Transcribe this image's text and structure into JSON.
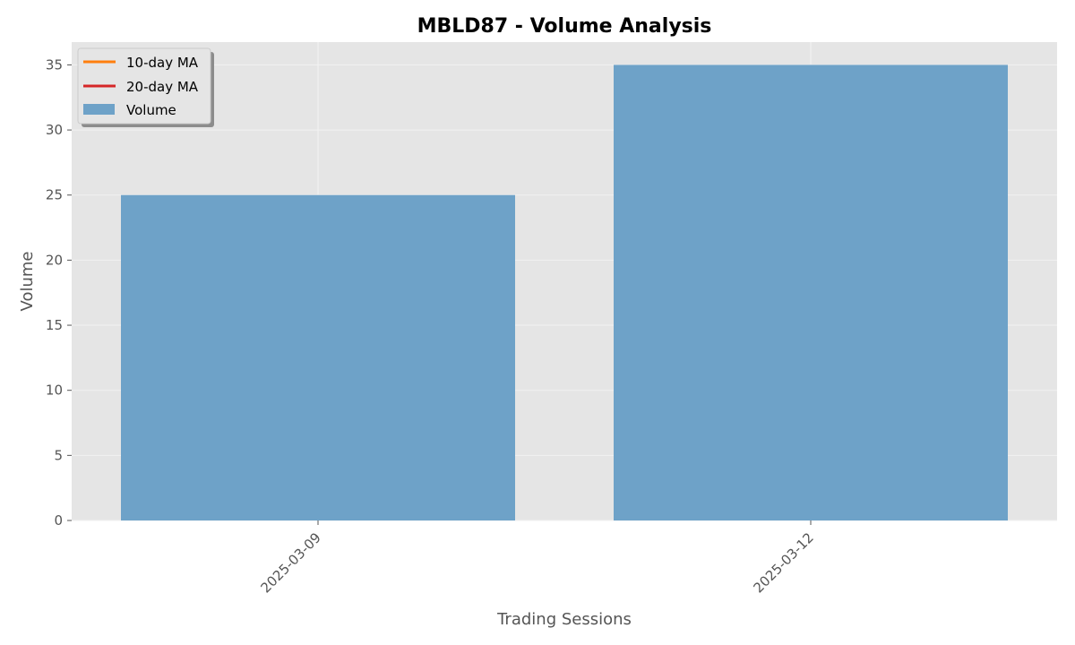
{
  "chart_data": {
    "type": "bar",
    "title": "MBLD87 - Volume Analysis",
    "xlabel": "Trading Sessions",
    "ylabel": "Volume",
    "categories": [
      "2025-03-09",
      "2025-03-12"
    ],
    "series": [
      {
        "name": "Volume",
        "values": [
          25,
          35
        ],
        "color": "#6ea2c8"
      }
    ],
    "lines": [
      {
        "name": "10-day MA",
        "values": [],
        "color": "#ff7f0e"
      },
      {
        "name": "20-day MA",
        "values": [],
        "color": "#d62728"
      }
    ],
    "ylim": [
      0,
      36.75
    ],
    "yticks": [
      0,
      5,
      10,
      15,
      20,
      25,
      30,
      35
    ],
    "grid": true,
    "legend_position": "top-left",
    "background": "#e5e5e5",
    "grid_color": "#f2f2f2"
  }
}
